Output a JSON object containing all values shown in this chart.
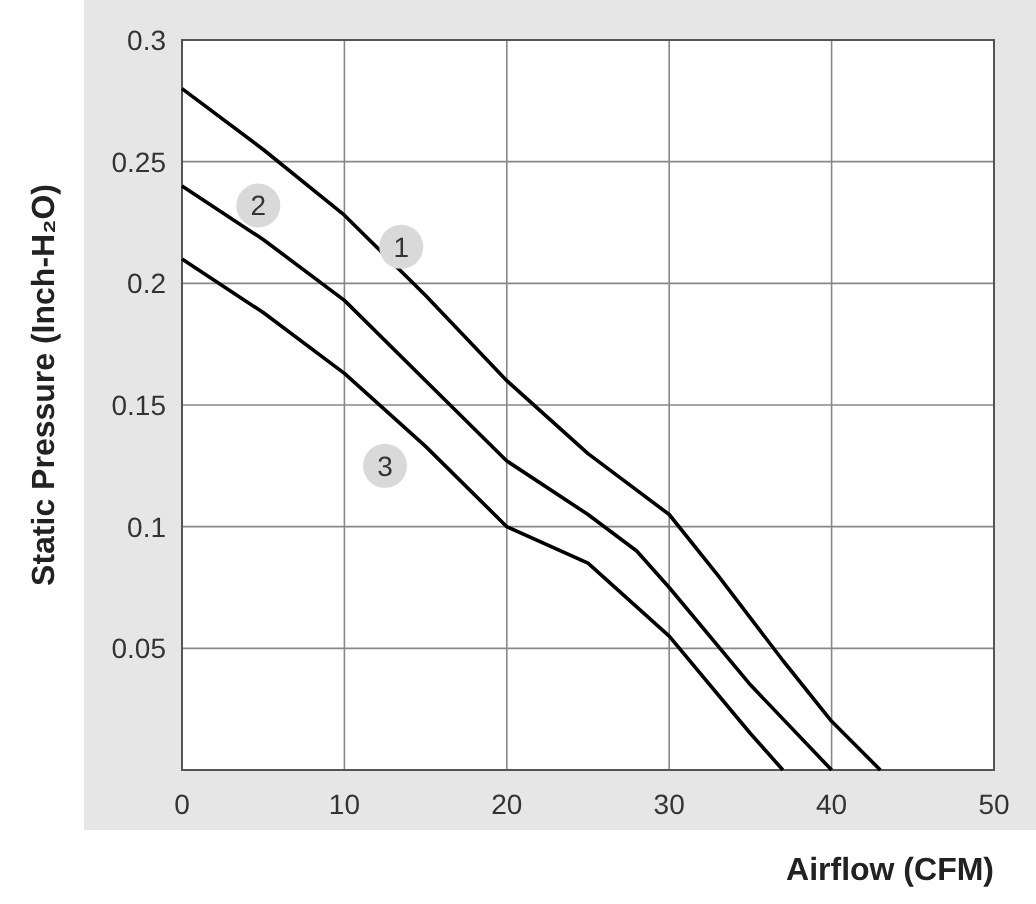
{
  "chart_data": {
    "type": "line",
    "xlabel": "Airflow (CFM)",
    "ylabel": "Static Pressure (Inch-H₂O)",
    "xlim": [
      0,
      50
    ],
    "xticks": [
      0,
      10,
      20,
      30,
      40,
      50
    ],
    "ylim": [
      0,
      0.3
    ],
    "yticks": [
      0.05,
      0.1,
      0.15,
      0.2,
      0.25,
      0.3
    ],
    "grid": true,
    "line_style": "solid",
    "series": [
      {
        "color": "#000000",
        "x": [
          0,
          5,
          10,
          15,
          20,
          25,
          30,
          33,
          37,
          40,
          43
        ],
        "values": [
          0.28,
          0.255,
          0.228,
          0.195,
          0.16,
          0.13,
          0.105,
          0.08,
          0.045,
          0.02,
          0
        ]
      },
      {
        "color": "#000000",
        "x": [
          0,
          5,
          10,
          15,
          20,
          25,
          28,
          30,
          35,
          40
        ],
        "values": [
          0.24,
          0.218,
          0.193,
          0.16,
          0.127,
          0.105,
          0.09,
          0.075,
          0.035,
          0
        ]
      },
      {
        "color": "#000000",
        "x": [
          0,
          5,
          10,
          15,
          20,
          25,
          30,
          35,
          37
        ],
        "values": [
          0.21,
          0.188,
          0.163,
          0.133,
          0.1,
          0.085,
          0.055,
          0.015,
          0
        ]
      }
    ],
    "annotations": [
      {
        "text": "1",
        "x": 13.5,
        "y": 0.215
      },
      {
        "text": "2",
        "x": 4.7,
        "y": 0.232
      },
      {
        "text": "3",
        "x": 12.5,
        "y": 0.125
      }
    ]
  }
}
